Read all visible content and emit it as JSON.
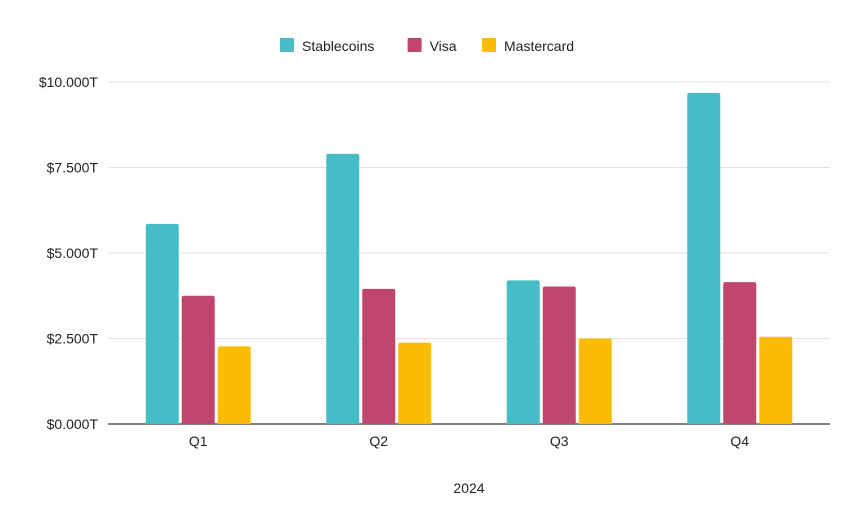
{
  "chart_data": {
    "type": "bar",
    "categories": [
      "Q1",
      "Q2",
      "Q3",
      "Q4"
    ],
    "series": [
      {
        "name": "Stablecoins",
        "color": "#46BDC6",
        "values": [
          5.85,
          7.9,
          4.2,
          9.68
        ]
      },
      {
        "name": "Visa",
        "color": "#C0466E",
        "values": [
          3.75,
          3.95,
          4.02,
          4.15
        ]
      },
      {
        "name": "Mastercard",
        "color": "#FBBC04",
        "values": [
          2.27,
          2.38,
          2.5,
          2.55
        ]
      }
    ],
    "y_ticks": [
      "$0.000T",
      "$2.500T",
      "$5.000T",
      "$7.500T",
      "$10.000T"
    ],
    "ylim": [
      0,
      10
    ],
    "xlabel": "2024",
    "ylabel": "",
    "title": "",
    "grid": true,
    "legend_position": "top-center"
  }
}
